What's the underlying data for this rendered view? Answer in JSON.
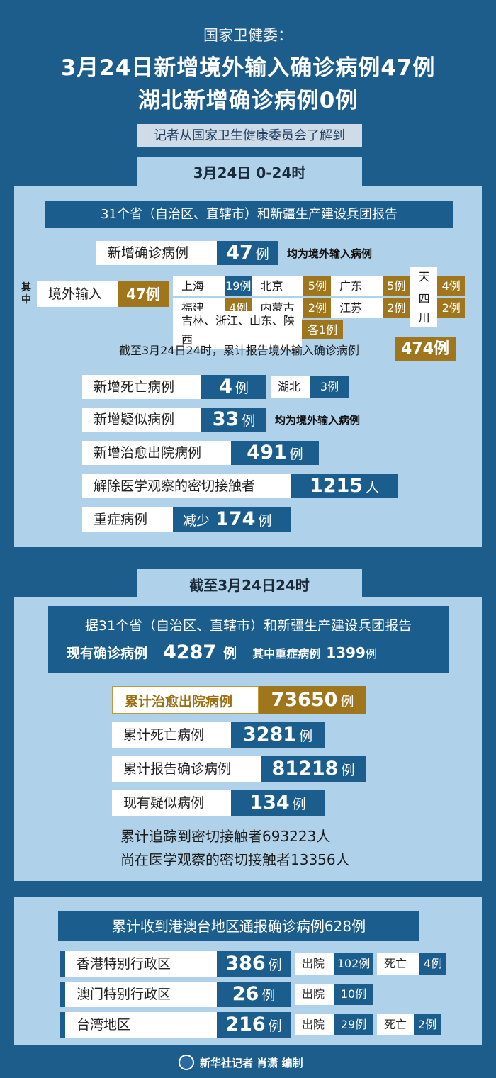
{
  "header": {
    "org": "国家卫健委：",
    "title1": "3月24日新增境外输入确诊病例47例",
    "title2": "湖北新增确诊病例0例",
    "subtitle": "记者从国家卫生健康委员会了解到"
  },
  "daily": {
    "tab": "3月24日 0-24时",
    "report": "31个省（自治区、直辖市）和新疆生产建设兵团报告",
    "new_confirmed": {
      "label": "新增确诊病例",
      "value": "47",
      "unit": "例",
      "note": "均为境外输入病例"
    },
    "side_label": "其中",
    "imported": {
      "label": "境外输入",
      "value": "47例"
    },
    "cities": [
      {
        "name": "上海",
        "value": "19例"
      },
      {
        "name": "北京",
        "value": "5例"
      },
      {
        "name": "广东",
        "value": "5例"
      },
      {
        "name": "天津",
        "value": "4例"
      },
      {
        "name": "福建",
        "value": "4例"
      },
      {
        "name": "内蒙古",
        "value": "2例"
      },
      {
        "name": "江苏",
        "value": "2例"
      },
      {
        "name": "四川",
        "value": "2例"
      }
    ],
    "others": {
      "name": "吉林、浙江、山东、陕西",
      "value": "各1例"
    },
    "cumulative_imported": {
      "label": "截至3月24日24时，累计报告境外输入确诊病例",
      "value": "474例"
    },
    "deaths": {
      "label": "新增死亡病例",
      "value": "4",
      "unit": "例",
      "sub_name": "湖北",
      "sub_value": "3例"
    },
    "suspected": {
      "label": "新增疑似病例",
      "value": "33",
      "unit": "例",
      "note": "均为境外输入病例"
    },
    "cured": {
      "label": "新增治愈出院病例",
      "value": "491",
      "unit": "例"
    },
    "released": {
      "label": "解除医学观察的密切接触者",
      "value": "1215",
      "unit": "人"
    },
    "severe": {
      "label": "重症病例",
      "prefix": "减少",
      "value": "174",
      "unit": "例"
    }
  },
  "cumulative": {
    "tab": "截至3月24日24时",
    "report": "据31个省（自治区、直辖市）和新疆生产建设兵团报告",
    "current_label": "现有确诊病例",
    "current_value": "4287",
    "current_unit": "例",
    "severe_label": "其中重症病例",
    "severe_value": "1399",
    "severe_unit": "例",
    "cured": {
      "label": "累计治愈出院病例",
      "value": "73650",
      "unit": "例"
    },
    "deaths": {
      "label": "累计死亡病例",
      "value": "3281",
      "unit": "例"
    },
    "reported": {
      "label": "累计报告确诊病例",
      "value": "81218",
      "unit": "例"
    },
    "suspected": {
      "label": "现有疑似病例",
      "value": "134",
      "unit": "例"
    },
    "tracked": "累计追踪到密切接触者693223人",
    "observing": "尚在医学观察的密切接触者13356人"
  },
  "hmt": {
    "title": "累计收到港澳台地区通报确诊病例628例",
    "rows": [
      {
        "name": "香港特别行政区",
        "value": "386",
        "unit": "例",
        "discharged_label": "出院",
        "discharged": "102例",
        "death_label": "死亡",
        "death": "4例"
      },
      {
        "name": "澳门特别行政区",
        "value": "26",
        "unit": "例",
        "discharged_label": "出院",
        "discharged": "10例"
      },
      {
        "name": "台湾地区",
        "value": "216",
        "unit": "例",
        "discharged_label": "出院",
        "discharged": "29例",
        "death_label": "死亡",
        "death": "2例"
      }
    ]
  },
  "footer": {
    "credit": "新华社记者 肖潇 编制"
  }
}
